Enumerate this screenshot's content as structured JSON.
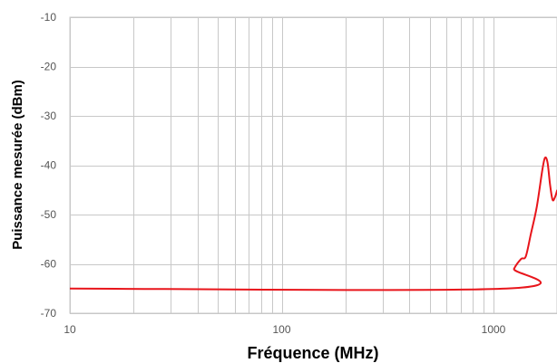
{
  "chart_data": {
    "type": "line",
    "title": "",
    "xlabel": "Fréquence (MHz)",
    "ylabel": "Puissance mesurée (dBm)",
    "x_scale": "log",
    "xlim": [
      10,
      2000
    ],
    "ylim": [
      -70,
      -10
    ],
    "grid": true,
    "x_tick_labels": [
      "10",
      "100",
      "1000"
    ],
    "y_tick_labels": [
      "-10",
      "-20",
      "-30",
      "-40",
      "-50",
      "-60",
      "-70"
    ],
    "series": [
      {
        "color": "#e8151b",
        "x": [
          10,
          1150,
          1250,
          1350,
          1420,
          1500,
          1600,
          1700,
          1750,
          1800,
          1850,
          1900,
          1950,
          2000
        ],
        "y": [
          -65,
          -65,
          -61,
          -59,
          -58.5,
          -54,
          -48.5,
          -41,
          -38.5,
          -39.5,
          -44,
          -47,
          -46.5,
          -45
        ]
      }
    ]
  }
}
